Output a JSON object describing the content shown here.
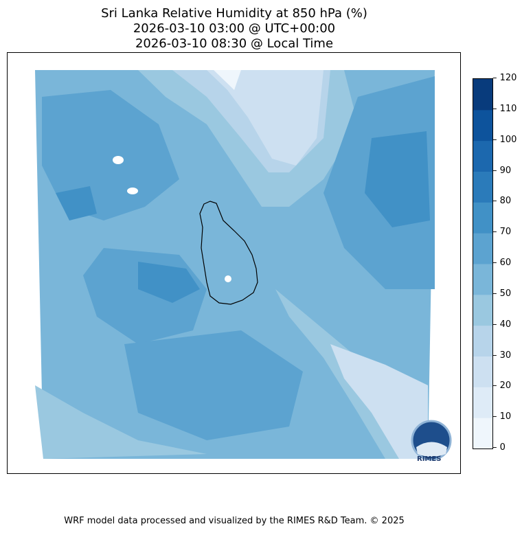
{
  "title": {
    "line1": "Sri Lanka Relative Humidity at 850 hPa (%)",
    "line2": "2026-03-10 03:00 @ UTC+00:00",
    "line3": "2026-03-10 08:30 @ Local Time"
  },
  "colorbar": {
    "levels": [
      0,
      10,
      20,
      30,
      40,
      50,
      60,
      70,
      80,
      90,
      100,
      110,
      120
    ],
    "tick_labels": [
      "0",
      "10",
      "20",
      "30",
      "40",
      "50",
      "60",
      "70",
      "80",
      "90",
      "100",
      "110",
      "120"
    ],
    "colors": [
      "#eff6fc",
      "#deebf7",
      "#cde0f1",
      "#b7d4ea",
      "#9ac8e0",
      "#7ab6d9",
      "#5ca3d0",
      "#4191c6",
      "#2b7bba",
      "#1c68ae",
      "#0d539c",
      "#083b7c"
    ]
  },
  "logo": {
    "text": "RIMES"
  },
  "footer": "WRF model data processed and visualized by the RIMES R&D Team. © 2025"
}
